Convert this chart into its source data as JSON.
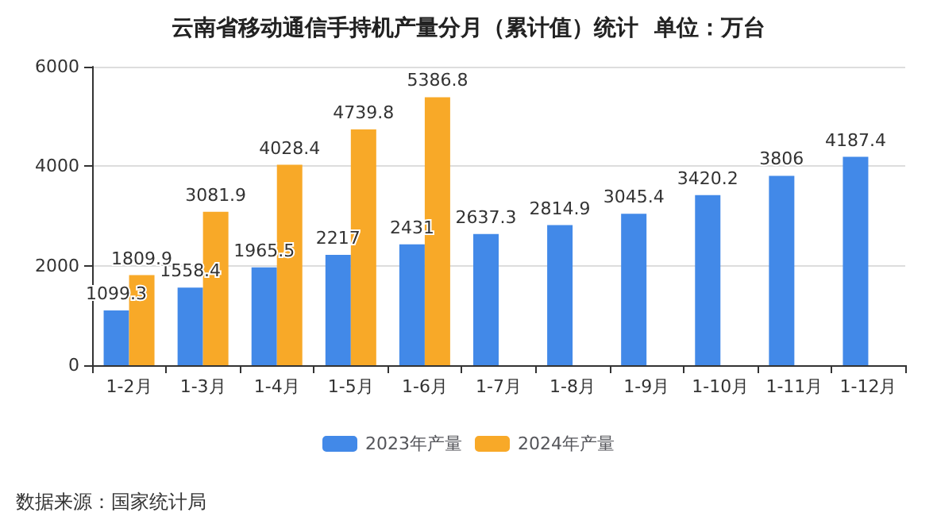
{
  "chart_data": {
    "type": "bar",
    "title": "云南省移动通信手持机产量分月（累计值）统计  单位：万台",
    "categories": [
      "1-2月",
      "1-3月",
      "1-4月",
      "1-5月",
      "1-6月",
      "1-7月",
      "1-8月",
      "1-9月",
      "1-10月",
      "1-11月",
      "1-12月"
    ],
    "series": [
      {
        "name": "2023年产量",
        "color": "#4289e8",
        "values": [
          1099.3,
          1558.4,
          1965.5,
          2217,
          2431,
          2637.3,
          2814.9,
          3045.4,
          3420.2,
          3806,
          4187.4
        ]
      },
      {
        "name": "2024年产量",
        "color": "#f8a928",
        "values": [
          1809.9,
          3081.9,
          4028.4,
          4739.8,
          5386.8,
          null,
          null,
          null,
          null,
          null,
          null
        ]
      }
    ],
    "ylim": [
      0,
      6000
    ],
    "yticks": [
      0,
      2000,
      4000,
      6000
    ],
    "grid": "y",
    "legend": "bottom",
    "data_labels": true,
    "annotations": [
      "数据来源：国家统计局"
    ]
  }
}
